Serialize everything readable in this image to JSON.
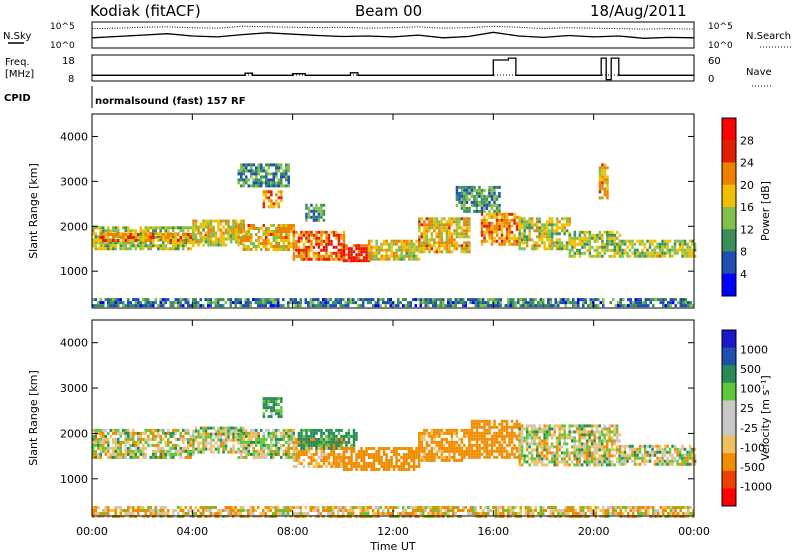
{
  "header": {
    "station": "Kodiak (fitACF)",
    "beam": "Beam 00",
    "date": "18/Aug/2011"
  },
  "top_panels": {
    "nsky_label": "N.Sky",
    "nsearch_label": "N.Search",
    "noise_ticks": [
      "10^5",
      "10^0"
    ],
    "freq_label_1": "Freq.",
    "freq_label_2": "[MHz]",
    "freq_ticks": [
      "18",
      "8"
    ],
    "nave_label": "Nave",
    "nave_ticks": [
      "60",
      "0"
    ],
    "cpid_label": "CPID",
    "cpid_text": "normalsound (fast) 157 RF"
  },
  "power_panel": {
    "ylabel": "Slant Range [km]",
    "colorbar_label": "Power [dB]",
    "colorbar_ticks": [
      "28",
      "24",
      "20",
      "16",
      "12",
      "8",
      "4"
    ]
  },
  "velocity_panel": {
    "ylabel": "Slant Range [km]",
    "colorbar_label": "Velocity [m s⁻¹]",
    "colorbar_ticks": [
      "1000",
      "500",
      "100",
      "25",
      "-25",
      "-100",
      "-500",
      "-1000"
    ]
  },
  "x_axis": {
    "xlabel": "Time UT",
    "ticks": [
      "00:00",
      "04:00",
      "08:00",
      "12:00",
      "16:00",
      "20:00",
      "00:00"
    ]
  },
  "colors": {
    "power_scale": [
      "#0000ff",
      "#1f4fb0",
      "#3a8f5a",
      "#7fbf4a",
      "#f0c000",
      "#f08000",
      "#e02000",
      "#ff0000"
    ],
    "velocity_scale": [
      "#ff0000",
      "#f04000",
      "#f08c00",
      "#f0c060",
      "#c8c8c8",
      "#c8c8c8",
      "#5fc83a",
      "#2a8a55",
      "#1f4fb0",
      "#1818c8"
    ]
  },
  "chart_data": [
    {
      "type": "line",
      "panel": "noise",
      "series": [
        {
          "name": "N.Sky",
          "style": "solid",
          "values": [
            2.2,
            2.5,
            2.8,
            3.1,
            2.6,
            2.4,
            2.9,
            3.3,
            3.0,
            2.7,
            2.5,
            2.6,
            2.4,
            2.8,
            2.2,
            2.5,
            3.4,
            2.6,
            2.3,
            2.7,
            2.4,
            2.6,
            2.1,
            2.3,
            2.2
          ]
        },
        {
          "name": "N.Search",
          "style": "dotted",
          "values": [
            4.2,
            4.3,
            4.5,
            4.6,
            4.4,
            4.3,
            4.7,
            4.6,
            4.5,
            4.4,
            4.5,
            4.3,
            4.4,
            4.6,
            4.3,
            4.4,
            4.7,
            4.5,
            4.2,
            4.4,
            4.3,
            4.2,
            4.1,
            4.2,
            4.1
          ]
        }
      ],
      "x_hours": [
        0,
        1,
        2,
        3,
        4,
        5,
        6,
        7,
        8,
        9,
        10,
        11,
        12,
        13,
        14,
        15,
        16,
        17,
        18,
        19,
        20,
        21,
        22,
        23,
        24
      ]
    },
    {
      "type": "line",
      "panel": "frequency",
      "series": [
        {
          "name": "Freq.",
          "segments": [
            [
              0,
              10.5
            ],
            [
              6.1,
              10.5
            ],
            [
              6.1,
              11.4
            ],
            [
              6.4,
              11.4
            ],
            [
              6.4,
              10.5
            ],
            [
              8.0,
              10.5
            ],
            [
              8.0,
              11.2
            ],
            [
              8.5,
              11.2
            ],
            [
              8.5,
              10.5
            ],
            [
              10.3,
              10.5
            ],
            [
              10.3,
              11.6
            ],
            [
              10.6,
              11.6
            ],
            [
              10.6,
              10.5
            ],
            [
              16.0,
              10.5
            ],
            [
              16.0,
              17.2
            ],
            [
              16.6,
              17.2
            ],
            [
              16.6,
              18.0
            ],
            [
              16.9,
              18.0
            ],
            [
              16.9,
              10.5
            ],
            [
              20.3,
              10.5
            ],
            [
              20.3,
              18.0
            ],
            [
              20.5,
              18.0
            ],
            [
              20.5,
              8.6
            ],
            [
              20.7,
              8.6
            ],
            [
              20.7,
              18.0
            ],
            [
              21.0,
              18.0
            ],
            [
              21.0,
              10.5
            ],
            [
              24,
              10.5
            ]
          ]
        }
      ]
    },
    {
      "type": "heatmap",
      "panel": "power",
      "xlim": [
        0,
        24
      ],
      "ylim": [
        180,
        4500
      ],
      "zlim": [
        0,
        30
      ],
      "ylabel": "Slant Range [km]",
      "zlabel": "Power [dB]",
      "regions": [
        {
          "t0": 0.0,
          "t1": 4.0,
          "r0": 1500,
          "r1": 2000,
          "p": 14
        },
        {
          "t0": 0.3,
          "t1": 4.5,
          "r0": 1650,
          "r1": 1850,
          "p": 20
        },
        {
          "t0": 4.0,
          "t1": 6.0,
          "r0": 1600,
          "r1": 2150,
          "p": 16
        },
        {
          "t0": 5.8,
          "t1": 8.0,
          "r0": 1450,
          "r1": 2050,
          "p": 18
        },
        {
          "t0": 6.8,
          "t1": 7.5,
          "r0": 2400,
          "r1": 2800,
          "p": 20
        },
        {
          "t0": 5.8,
          "t1": 7.8,
          "r0": 2900,
          "r1": 3400,
          "p": 9
        },
        {
          "t0": 8.0,
          "t1": 10.0,
          "r0": 1250,
          "r1": 1900,
          "p": 22
        },
        {
          "t0": 8.5,
          "t1": 9.2,
          "r0": 2100,
          "r1": 2500,
          "p": 10
        },
        {
          "t0": 10.0,
          "t1": 11.0,
          "r0": 1200,
          "r1": 1600,
          "p": 26
        },
        {
          "t0": 11.0,
          "t1": 13.0,
          "r0": 1250,
          "r1": 1700,
          "p": 16
        },
        {
          "t0": 13.0,
          "t1": 15.0,
          "r0": 1400,
          "r1": 2200,
          "p": 18
        },
        {
          "t0": 14.5,
          "t1": 16.2,
          "r0": 2300,
          "r1": 2900,
          "p": 10
        },
        {
          "t0": 15.5,
          "t1": 17.0,
          "r0": 1600,
          "r1": 2300,
          "p": 20
        },
        {
          "t0": 17.0,
          "t1": 19.0,
          "r0": 1500,
          "r1": 2200,
          "p": 15
        },
        {
          "t0": 19.0,
          "t1": 21.0,
          "r0": 1300,
          "r1": 1900,
          "p": 14
        },
        {
          "t0": 20.2,
          "t1": 20.5,
          "r0": 2600,
          "r1": 3400,
          "p": 18
        },
        {
          "t0": 21.0,
          "t1": 24.0,
          "r0": 1350,
          "r1": 1700,
          "p": 14
        },
        {
          "t0": 0.0,
          "t1": 24.0,
          "r0": 200,
          "r1": 400,
          "p": 8
        }
      ]
    },
    {
      "type": "heatmap",
      "panel": "velocity",
      "xlim": [
        0,
        24
      ],
      "ylim": [
        180,
        4500
      ],
      "zlim": [
        -1000,
        1000
      ],
      "ylabel": "Slant Range [km]",
      "zlabel": "Velocity [m s⁻¹]",
      "regions": [
        {
          "t0": 0.0,
          "t1": 4.0,
          "r0": 1500,
          "r1": 2100,
          "v": 0
        },
        {
          "t0": 4.0,
          "t1": 6.0,
          "r0": 1600,
          "r1": 2150,
          "v": 0
        },
        {
          "t0": 5.8,
          "t1": 8.0,
          "r0": 1500,
          "r1": 2100,
          "v": 10
        },
        {
          "t0": 6.8,
          "t1": 7.5,
          "r0": 2400,
          "r1": 2800,
          "v": 150
        },
        {
          "t0": 8.0,
          "t1": 10.0,
          "r0": 1250,
          "r1": 1900,
          "v": -150
        },
        {
          "t0": 8.2,
          "t1": 10.5,
          "r0": 1700,
          "r1": 2100,
          "v": 200
        },
        {
          "t0": 10.0,
          "t1": 13.0,
          "r0": 1200,
          "r1": 1700,
          "v": -300
        },
        {
          "t0": 13.0,
          "t1": 15.0,
          "r0": 1400,
          "r1": 2100,
          "v": -200
        },
        {
          "t0": 15.0,
          "t1": 17.0,
          "r0": 1500,
          "r1": 2300,
          "v": -250
        },
        {
          "t0": 17.0,
          "t1": 21.0,
          "r0": 1300,
          "r1": 2200,
          "v": 0
        },
        {
          "t0": 21.0,
          "t1": 24.0,
          "r0": 1350,
          "r1": 1750,
          "v": 0
        },
        {
          "t0": 0.0,
          "t1": 24.0,
          "r0": 200,
          "r1": 400,
          "v": -80
        }
      ]
    }
  ]
}
